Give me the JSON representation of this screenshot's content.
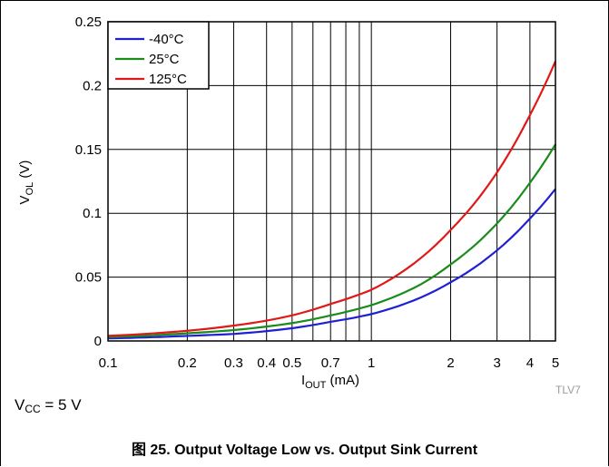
{
  "chart_data": {
    "type": "line",
    "title": "Output Voltage Low vs. Output Sink Current",
    "figure_label": "图 25.",
    "xlabel": {
      "main": "I",
      "sub": "OUT",
      "unit": " (mA)"
    },
    "ylabel": {
      "main": "V",
      "sub": "OL",
      "unit": " (V)"
    },
    "xscale": "log",
    "xlim": [
      0.1,
      5
    ],
    "ylim": [
      0,
      0.25
    ],
    "x_ticks": [
      0.1,
      0.2,
      0.3,
      0.4,
      0.5,
      0.7,
      1,
      2,
      3,
      4,
      5
    ],
    "x_tick_labels": [
      "0.1",
      "0.2",
      "0.3",
      "0.4",
      "0.5",
      "0.7",
      "1",
      "2",
      "3",
      "4",
      "5"
    ],
    "x_gridlines": [
      0.1,
      0.2,
      0.3,
      0.4,
      0.5,
      0.6,
      0.7,
      0.8,
      0.9,
      1,
      2,
      3,
      4,
      5
    ],
    "y_ticks": [
      0,
      0.05,
      0.1,
      0.15,
      0.2,
      0.25
    ],
    "y_tick_labels": [
      "0",
      "0.05",
      "0.1",
      "0.15",
      "0.2",
      "0.25"
    ],
    "grid": true,
    "legend_position": "top-left",
    "x": [
      0.1,
      0.2,
      0.3,
      0.5,
      0.7,
      1,
      1.5,
      2,
      3,
      4,
      5
    ],
    "series": [
      {
        "name": "-40°C",
        "color": "#1f1fd6",
        "values": [
          0.002,
          0.004,
          0.0055,
          0.01,
          0.015,
          0.021,
          0.033,
          0.046,
          0.071,
          0.096,
          0.119
        ]
      },
      {
        "name": "25°C",
        "color": "#1a8c1a",
        "values": [
          0.003,
          0.006,
          0.0085,
          0.014,
          0.02,
          0.028,
          0.043,
          0.06,
          0.092,
          0.124,
          0.154
        ]
      },
      {
        "name": "125°C",
        "color": "#e01818",
        "values": [
          0.004,
          0.008,
          0.012,
          0.02,
          0.029,
          0.04,
          0.063,
          0.087,
          0.132,
          0.177,
          0.219
        ]
      }
    ]
  },
  "condition": {
    "main": "V",
    "sub": "CC",
    "rest": " = 5 V"
  },
  "tag": "TLV7"
}
